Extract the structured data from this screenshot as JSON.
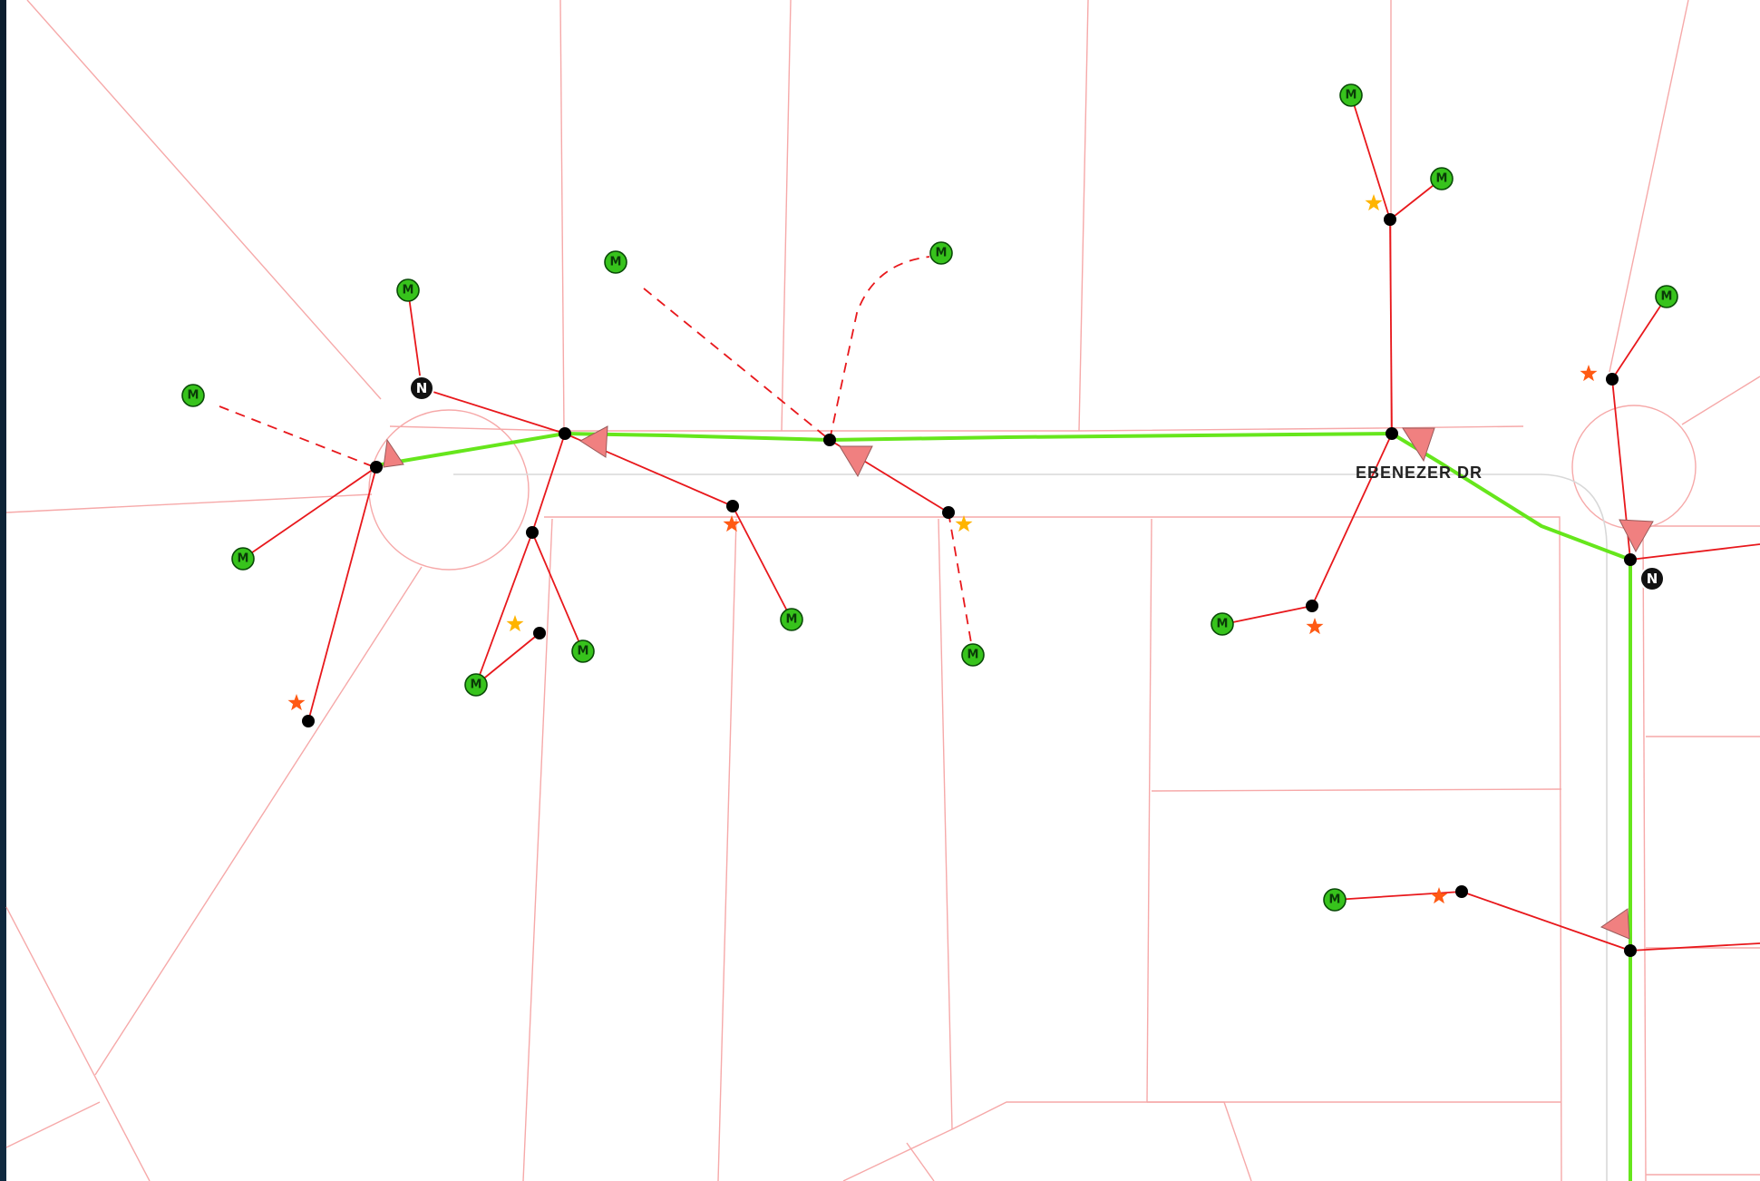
{
  "map": {
    "road_label": "EBENEZER DR",
    "north_label": "N",
    "meter_label": "M",
    "colors": {
      "background": "#ffffff",
      "parcel_line": "#f6a9a9",
      "primary_line": "#66e61c",
      "service_line": "#e8181c",
      "meter_fill": "#37c31c",
      "device_marker": "#f08080",
      "star_orange": "#ff5a14",
      "star_yellow": "#ffb400",
      "frame": "#0d2236"
    },
    "icons": [
      "meter-icon",
      "junction-icon",
      "device-triangle-icon",
      "star-icon",
      "north-node-icon"
    ]
  }
}
